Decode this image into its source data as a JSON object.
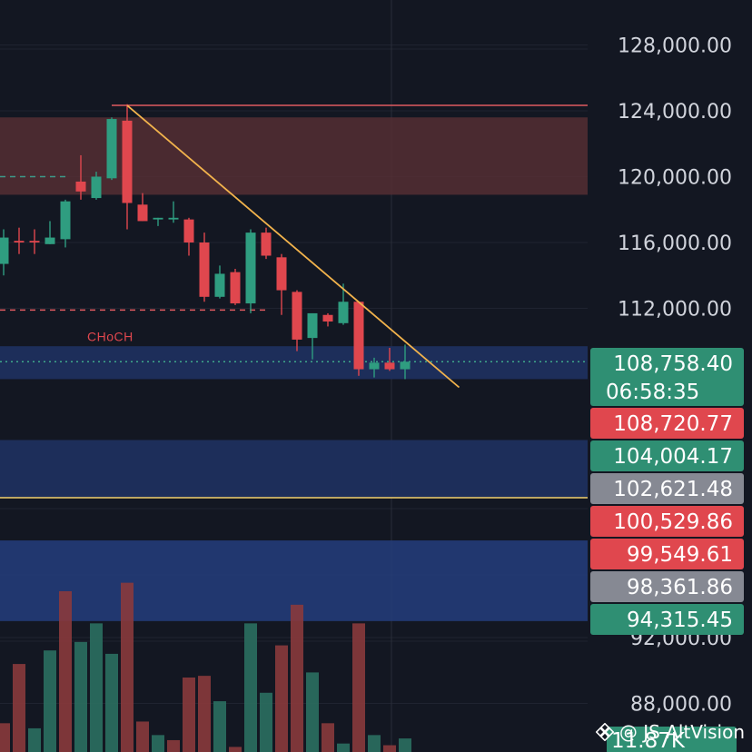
{
  "chart_data": {
    "type": "candlestick",
    "ylim": [
      86500,
      130500
    ],
    "y_ticks": [
      {
        "value": 128000,
        "label": "128,000.00"
      },
      {
        "value": 124000,
        "label": "124,000.00"
      },
      {
        "value": 120000,
        "label": "120,000.00"
      },
      {
        "value": 116000,
        "label": "116,000.00"
      },
      {
        "value": 112000,
        "label": "112,000.00"
      },
      {
        "value": 92000,
        "label": "92,000.00"
      },
      {
        "value": 88000,
        "label": "88,000.00"
      }
    ],
    "candles": [
      {
        "o": 114700,
        "h": 116800,
        "l": 114000,
        "c": 116300
      },
      {
        "o": 116100,
        "h": 116900,
        "l": 115300,
        "c": 116000
      },
      {
        "o": 116100,
        "h": 116800,
        "l": 115300,
        "c": 116000
      },
      {
        "o": 115900,
        "h": 117300,
        "l": 115900,
        "c": 116300
      },
      {
        "o": 116200,
        "h": 118600,
        "l": 115700,
        "c": 118500
      },
      {
        "o": 119700,
        "h": 121300,
        "l": 118600,
        "c": 119100
      },
      {
        "o": 118700,
        "h": 120300,
        "l": 118600,
        "c": 120000
      },
      {
        "o": 119900,
        "h": 123600,
        "l": 119800,
        "c": 123500
      },
      {
        "o": 123400,
        "h": 124400,
        "l": 116800,
        "c": 118400
      },
      {
        "o": 118300,
        "h": 119000,
        "l": 117300,
        "c": 117300
      },
      {
        "o": 117400,
        "h": 117500,
        "l": 117000,
        "c": 117500
      },
      {
        "o": 117400,
        "h": 118500,
        "l": 117200,
        "c": 117500
      },
      {
        "o": 117400,
        "h": 117500,
        "l": 115200,
        "c": 116000
      },
      {
        "o": 116000,
        "h": 116600,
        "l": 112400,
        "c": 112700
      },
      {
        "o": 112700,
        "h": 114600,
        "l": 112600,
        "c": 114100
      },
      {
        "o": 114200,
        "h": 114400,
        "l": 112200,
        "c": 112300
      },
      {
        "o": 112300,
        "h": 116800,
        "l": 111700,
        "c": 116600
      },
      {
        "o": 116600,
        "h": 116900,
        "l": 115000,
        "c": 115200
      },
      {
        "o": 115100,
        "h": 115300,
        "l": 111600,
        "c": 113100
      },
      {
        "o": 113000,
        "h": 113100,
        "l": 109400,
        "c": 110100
      },
      {
        "o": 110200,
        "h": 111700,
        "l": 108900,
        "c": 111700
      },
      {
        "o": 111600,
        "h": 111700,
        "l": 110900,
        "c": 111200
      },
      {
        "o": 111100,
        "h": 113500,
        "l": 111000,
        "c": 112400
      },
      {
        "o": 112400,
        "h": 112400,
        "l": 107900,
        "c": 108300
      },
      {
        "o": 108300,
        "h": 109000,
        "l": 107800,
        "c": 108700
      },
      {
        "o": 108700,
        "h": 109600,
        "l": 108200,
        "c": 108300
      },
      {
        "o": 108300,
        "h": 109800,
        "l": 107700,
        "c": 108758
      }
    ],
    "volume_ylim": [
      0,
      110
    ],
    "volumes": [
      {
        "v": 17,
        "up": false
      },
      {
        "v": 52,
        "up": false
      },
      {
        "v": 14,
        "up": true
      },
      {
        "v": 60,
        "up": true
      },
      {
        "v": 95,
        "up": false
      },
      {
        "v": 65,
        "up": true
      },
      {
        "v": 76,
        "up": true
      },
      {
        "v": 58,
        "up": true
      },
      {
        "v": 100,
        "up": false
      },
      {
        "v": 18,
        "up": false
      },
      {
        "v": 10,
        "up": true
      },
      {
        "v": 7,
        "up": false
      },
      {
        "v": 44,
        "up": false
      },
      {
        "v": 45,
        "up": false
      },
      {
        "v": 30,
        "up": true
      },
      {
        "v": 3,
        "up": false
      },
      {
        "v": 76,
        "up": true
      },
      {
        "v": 35,
        "up": true
      },
      {
        "v": 63,
        "up": false
      },
      {
        "v": 87,
        "up": false
      },
      {
        "v": 47,
        "up": true
      },
      {
        "v": 17,
        "up": false
      },
      {
        "v": 5,
        "up": true
      },
      {
        "v": 76,
        "up": false
      },
      {
        "v": 10,
        "up": true
      },
      {
        "v": 4,
        "up": false
      },
      {
        "v": 8,
        "up": true
      }
    ],
    "zones": [
      {
        "name": "supply-zone",
        "from": 118900,
        "to": 123600,
        "color": "#5a3035",
        "opacity": 0.78
      },
      {
        "name": "demand-zone-upper",
        "from": 107700,
        "to": 109700,
        "color": "#1e2f5e",
        "opacity": 0.95
      },
      {
        "name": "demand-zone-middle",
        "from": 100500,
        "to": 104000,
        "color": "#1e2f5e",
        "opacity": 0.95
      },
      {
        "name": "demand-zone-lower",
        "from": 93000,
        "to": 97900,
        "color": "#253d7d",
        "opacity": 0.85
      }
    ],
    "levels": [
      {
        "name": "resistance-line",
        "value": 124330,
        "color": "#e05a5f",
        "style": "solid"
      },
      {
        "name": "choch-level",
        "value": 111900,
        "color": "#e05a5f",
        "style": "dashed"
      },
      {
        "name": "prior-level",
        "value": 120000,
        "color": "#3c9a8a",
        "style": "dashed"
      },
      {
        "name": "support-line",
        "value": 100500,
        "color": "#f4d26c",
        "style": "solid"
      },
      {
        "name": "current-price-line",
        "value": 108758,
        "color": "#3ea88a",
        "style": "dotted"
      }
    ],
    "trendline": {
      "from": {
        "candle": 8,
        "value": 124330
      },
      "to": {
        "candle": 29.5,
        "value": 107200
      },
      "color": "#f2b34c"
    },
    "annotation": {
      "text": "CHoCH",
      "value": 110300
    },
    "price_tags": [
      {
        "label": "108,758.40",
        "sublabel": "06:58:35",
        "value": 108758,
        "color": "#2f8f73"
      },
      {
        "label": "108,720.77",
        "value": 108720,
        "color": "#e0474e"
      },
      {
        "label": "104,004.17",
        "value": 104004,
        "color": "#2f8f73"
      },
      {
        "label": "102,621.48",
        "value": 102621,
        "color": "#868993"
      },
      {
        "label": "100,529.86",
        "value": 100529,
        "color": "#e0474e"
      },
      {
        "label": "99,549.61",
        "value": 99549,
        "color": "#e0474e"
      },
      {
        "label": "98,361.86",
        "value": 98361,
        "color": "#868993"
      },
      {
        "label": "94,315.45",
        "value": 94315,
        "color": "#2f8f73"
      }
    ],
    "volume_tag": {
      "label": "11.87K",
      "color": "#2f8f73"
    },
    "colors": {
      "up": "#2f9d80",
      "down": "#e0474e",
      "grid": "#1f2330",
      "vol_up": "#2b6f61",
      "vol_down": "#8a3a3c"
    }
  },
  "watermark": "@ JS AltVision"
}
